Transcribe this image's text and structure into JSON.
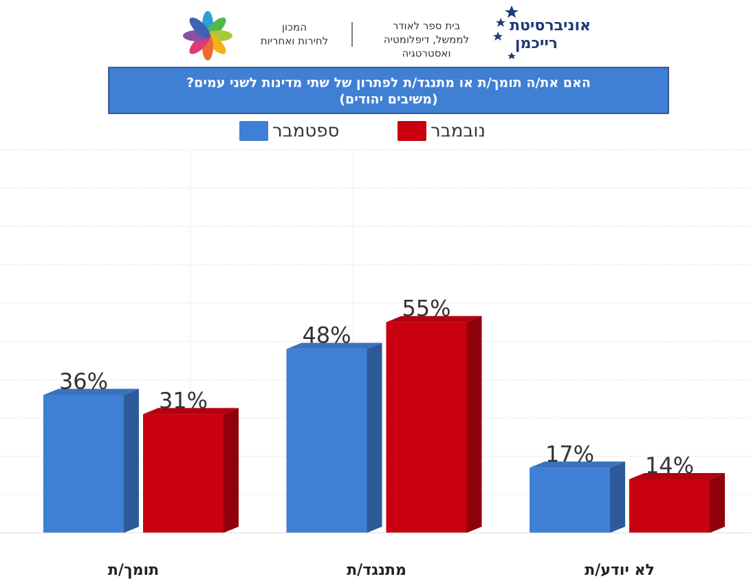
{
  "header": {
    "university": [
      "אוניברסיטת",
      "רייכמן"
    ],
    "school": [
      "בית ספר לאודר",
      "לממשל, דיפלומטיה",
      "ואסטרטגיה"
    ],
    "institute": [
      "המכון",
      "לחירות ואחריות"
    ]
  },
  "chart_data": {
    "type": "bar3d",
    "title": "האם את/ה תומך/ת או מתנגד/ת לפתרון של שתי מדינות לשני עמים?",
    "subtitle": "(משיבים יהודים)",
    "categories": [
      "תומך/ת",
      "מתנגד/ת",
      "לא יודע/ת"
    ],
    "series": [
      {
        "name": "ספטמבר",
        "color": "#3f7fd4",
        "values": [
          36,
          48,
          17
        ],
        "value_labels": [
          "36%",
          "48%",
          "17%"
        ]
      },
      {
        "name": "נובמבר",
        "color": "#c8000f",
        "values": [
          31,
          55,
          14
        ],
        "value_labels": [
          "31%",
          "55%",
          "14%"
        ]
      }
    ],
    "ylim": [
      0,
      100
    ],
    "yticks": [
      0,
      10,
      20,
      30,
      40,
      50,
      60,
      70,
      80,
      90,
      100
    ],
    "grid": true
  }
}
